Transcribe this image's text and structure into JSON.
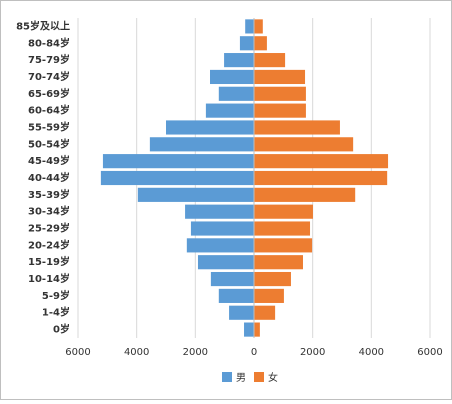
{
  "chart_data": {
    "type": "pyramid",
    "categories": [
      "85岁及以上",
      "80-84岁",
      "75-79岁",
      "70-74岁",
      "65-69岁",
      "60-64岁",
      "55-59岁",
      "50-54岁",
      "45-49岁",
      "40-44岁",
      "35-39岁",
      "30-34岁",
      "25-29岁",
      "20-24岁",
      "15-19岁",
      "10-14岁",
      "5-9岁",
      "1-4岁",
      "0岁"
    ],
    "series": [
      {
        "name": "男",
        "color": "#5b9bd5",
        "values": [
          -300,
          -480,
          -1020,
          -1500,
          -1200,
          -1640,
          -3000,
          -3550,
          -5150,
          -5220,
          -3960,
          -2350,
          -2150,
          -2290,
          -1910,
          -1470,
          -1200,
          -850,
          -340
        ]
      },
      {
        "name": "女",
        "color": "#ed7d31",
        "values": [
          300,
          440,
          1060,
          1740,
          1770,
          1770,
          2930,
          3380,
          4570,
          4540,
          3450,
          2010,
          1910,
          1980,
          1670,
          1260,
          1020,
          720,
          200
        ]
      }
    ],
    "xlim": [
      -6000,
      6000
    ],
    "xticks": [
      {
        "value": -6000,
        "label": "6000"
      },
      {
        "value": -4000,
        "label": "4000"
      },
      {
        "value": -2000,
        "label": "2000"
      },
      0,
      2000,
      4000,
      6000
    ],
    "grid": true,
    "legend": "bottom"
  }
}
